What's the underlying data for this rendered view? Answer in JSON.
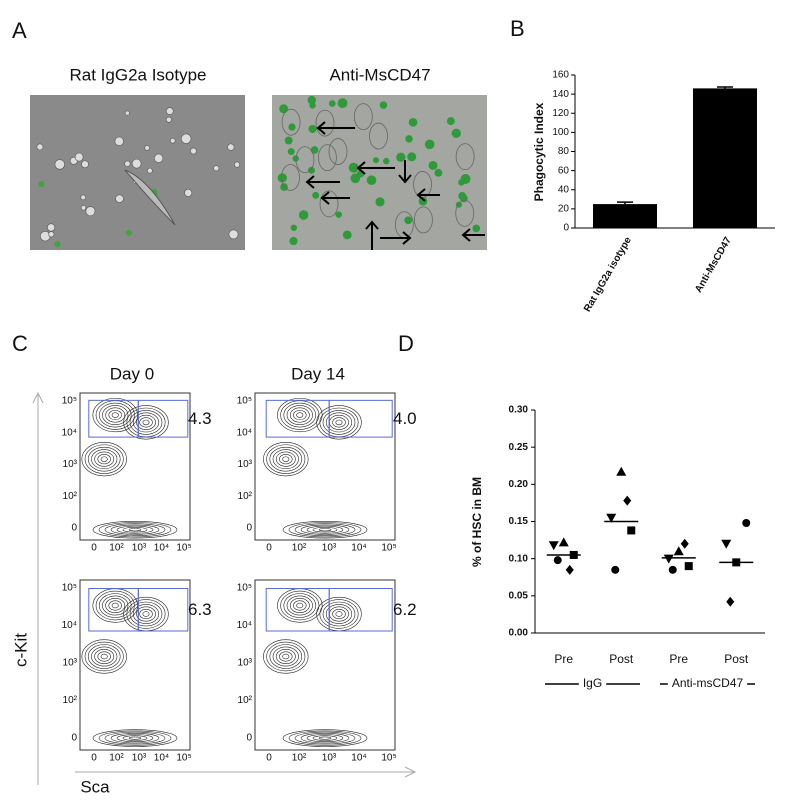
{
  "panel_labels": [
    "A",
    "B",
    "C",
    "D"
  ],
  "panel_a": {
    "titles": [
      "Rat IgG2a Isotype",
      "Anti-MsCD47"
    ]
  },
  "panel_c": {
    "columns": [
      "Day 0",
      "Day 14"
    ],
    "gates": [
      "4.3",
      "4.0",
      "6.3",
      "6.2"
    ],
    "y_label": "c-Kit",
    "x_label": "Sca",
    "y_tick_labels": [
      "10⁵",
      "10⁴",
      "10³",
      "10²",
      "0"
    ],
    "x_tick_labels": [
      "0",
      "10²",
      "10³",
      "10⁴",
      "10⁵"
    ]
  },
  "chart_data": [
    {
      "type": "bar",
      "ylabel": "Phagocytic Index",
      "categories": [
        "Rat IgG2a isotype",
        "Anti-MsCD47"
      ],
      "values": [
        25,
        146
      ],
      "errors": [
        2,
        1.5
      ],
      "color": "#000000",
      "ylim": [
        0,
        160
      ],
      "yticks": [
        0,
        20,
        40,
        60,
        80,
        100,
        120,
        140,
        160
      ]
    },
    {
      "type": "strip",
      "ylabel": "% of  HSC in BM",
      "categories": [
        "Pre",
        "Post",
        "Pre",
        "Post"
      ],
      "groups": [
        "IgG",
        "Anti-msCD47"
      ],
      "points": [
        [
          0.118,
          0.122,
          0.105,
          0.098,
          0.085
        ],
        [
          0.155,
          0.217,
          0.138,
          0.085,
          0.178
        ],
        [
          0.1,
          0.11,
          0.09,
          0.085,
          0.12
        ],
        [
          0.12,
          0.095,
          0.148,
          0.042
        ]
      ],
      "markers": [
        [
          "tri-down",
          "tri-up",
          "square",
          "circle",
          "diamond"
        ],
        [
          "tri-down",
          "tri-up",
          "square",
          "circle",
          "diamond"
        ],
        [
          "tri-down",
          "tri-up",
          "square",
          "circle",
          "diamond"
        ],
        [
          "tri-down",
          "square",
          "circle",
          "diamond"
        ]
      ],
      "means": [
        0.105,
        0.15,
        0.101,
        0.095
      ],
      "color": "#000000",
      "ylim": [
        0,
        0.3
      ],
      "yticks": [
        {
          "value": 0,
          "label": "0.00"
        },
        {
          "value": 0.05,
          "label": "0.05"
        },
        {
          "value": 0.1,
          "label": "0.10"
        },
        {
          "value": 0.15,
          "label": "0.15"
        },
        {
          "value": 0.2,
          "label": "0.20"
        },
        {
          "value": 0.25,
          "label": "0.25"
        },
        {
          "value": 0.3,
          "label": "0.30"
        }
      ]
    }
  ]
}
